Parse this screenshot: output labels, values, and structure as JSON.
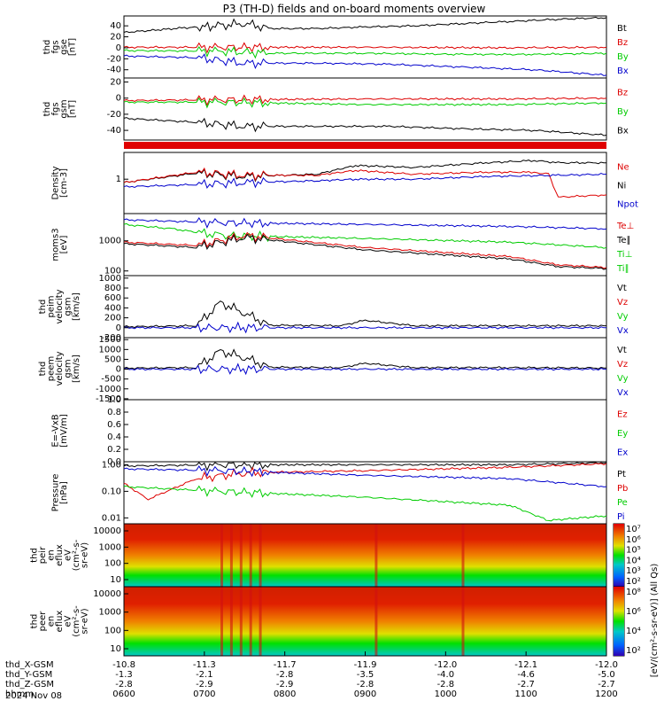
{
  "title": "P3 (TH-D) fields and on-board moments overview",
  "date_label": "2024 Nov 08",
  "chart_data": [
    {
      "type": "line",
      "ylabel": [
        "thd",
        "fgs",
        "gse",
        "[nT]"
      ],
      "yticks": [
        "40",
        "20",
        "0",
        "-20",
        "-40"
      ],
      "ytick_vals": [
        40,
        20,
        0,
        -20,
        -40
      ],
      "ylim": [
        -55,
        58
      ],
      "legend": [
        {
          "name": "Bt",
          "color": "#000000"
        },
        {
          "name": "Bz",
          "color": "#dd0000"
        },
        {
          "name": "By",
          "color": "#00cc00"
        },
        {
          "name": "Bx",
          "color": "#0000cc"
        }
      ],
      "series": [
        {
          "name": "Bt",
          "color": "#000000",
          "x": [
            0,
            0.12,
            0.2,
            0.25,
            0.3,
            0.4,
            0.5,
            0.6,
            0.7,
            0.8,
            0.9,
            1
          ],
          "values": [
            28,
            36,
            40,
            45,
            35,
            35,
            38,
            40,
            44,
            48,
            52,
            55
          ]
        },
        {
          "name": "Bz",
          "color": "#dd0000",
          "x": [
            0,
            0.2,
            0.5,
            0.8,
            1
          ],
          "values": [
            1,
            1,
            1,
            0,
            1
          ]
        },
        {
          "name": "By",
          "color": "#00cc00",
          "x": [
            0,
            0.2,
            0.3,
            0.5,
            0.7,
            0.85,
            1
          ],
          "values": [
            -5,
            -6,
            -10,
            -10,
            -12,
            -12,
            -10
          ]
        },
        {
          "name": "Bx",
          "color": "#0000cc",
          "x": [
            0,
            0.15,
            0.25,
            0.4,
            0.55,
            0.7,
            0.85,
            1
          ],
          "values": [
            -15,
            -18,
            -28,
            -28,
            -30,
            -35,
            -40,
            -50
          ]
        }
      ]
    },
    {
      "type": "line",
      "ylabel": [
        "thd",
        "fgs",
        "gsm",
        "[nT]"
      ],
      "yticks": [
        "20",
        "0",
        "-20",
        "-40"
      ],
      "ytick_vals": [
        20,
        0,
        -20,
        -40
      ],
      "ylim": [
        -52,
        25
      ],
      "legend": [
        {
          "name": "Bz",
          "color": "#dd0000"
        },
        {
          "name": "By",
          "color": "#00cc00"
        },
        {
          "name": "Bx",
          "color": "#000000"
        }
      ],
      "series": [
        {
          "name": "Bz",
          "color": "#dd0000",
          "x": [
            0,
            0.2,
            0.5,
            0.8,
            1
          ],
          "values": [
            -3,
            -2,
            -1,
            -1,
            0
          ]
        },
        {
          "name": "By",
          "color": "#00cc00",
          "x": [
            0,
            0.2,
            0.5,
            0.8,
            1
          ],
          "values": [
            -5,
            -5,
            -8,
            -8,
            -6
          ]
        },
        {
          "name": "Bx",
          "color": "#000000",
          "x": [
            0,
            0.15,
            0.25,
            0.4,
            0.55,
            0.7,
            0.85,
            1
          ],
          "values": [
            -25,
            -30,
            -35,
            -35,
            -35,
            -38,
            -40,
            -46
          ]
        }
      ]
    },
    {
      "type": "line",
      "yscale": "log",
      "ylabel": [
        "Density",
        "[cm-3]"
      ],
      "yticks": [
        "1"
      ],
      "ytick_vals": [
        1
      ],
      "ylim": [
        0.1,
        6
      ],
      "legend": [
        {
          "name": "Ne",
          "color": "#dd0000"
        },
        {
          "name": "Ni",
          "color": "#000000"
        },
        {
          "name": "Npot",
          "color": "#0000cc"
        }
      ],
      "series": [
        {
          "name": "Ni",
          "color": "#000000",
          "x": [
            0,
            0.15,
            0.25,
            0.4,
            0.48,
            0.6,
            0.75,
            0.85,
            0.9,
            1
          ],
          "values": [
            0.8,
            1.5,
            1.2,
            1.4,
            2.5,
            2.2,
            3,
            3.5,
            3,
            3
          ]
        },
        {
          "name": "Ne",
          "color": "#dd0000",
          "x": [
            0,
            0.15,
            0.25,
            0.4,
            0.48,
            0.6,
            0.75,
            0.85,
            0.88,
            0.9,
            1
          ],
          "values": [
            0.8,
            1.6,
            1.3,
            1.3,
            1.8,
            1.4,
            1.6,
            1.6,
            1.4,
            0.3,
            0.35
          ]
        },
        {
          "name": "Npot",
          "color": "#0000cc",
          "x": [
            0,
            0.15,
            0.25,
            0.4,
            0.48,
            0.6,
            0.75,
            0.9,
            1
          ],
          "values": [
            0.6,
            0.7,
            0.8,
            0.9,
            1.0,
            1.0,
            1.2,
            1.3,
            1.4
          ]
        }
      ]
    },
    {
      "type": "line",
      "yscale": "log",
      "ylabel": [
        "moms3",
        "[eV]"
      ],
      "yticks": [
        "1000",
        "100"
      ],
      "ytick_vals": [
        1000,
        100
      ],
      "ylim": [
        70,
        8000
      ],
      "legend": [
        {
          "name": "Te⊥",
          "color": "#dd0000"
        },
        {
          "name": "Te∥",
          "color": "#000000"
        },
        {
          "name": "Ti⊥",
          "color": "#00cc00"
        },
        {
          "name": "Ti∥",
          "color": "#00cc00"
        }
      ],
      "series": [
        {
          "name": "Ti⊥",
          "color": "#0000cc",
          "x": [
            0,
            0.2,
            0.5,
            0.8,
            1
          ],
          "values": [
            5000,
            4000,
            3500,
            3000,
            2500
          ]
        },
        {
          "name": "Ti∥",
          "color": "#00cc00",
          "x": [
            0,
            0.1,
            0.2,
            0.5,
            0.8,
            1
          ],
          "values": [
            3500,
            2500,
            1500,
            1200,
            900,
            600
          ]
        },
        {
          "name": "Te⊥",
          "color": "#dd0000",
          "x": [
            0,
            0.15,
            0.25,
            0.5,
            0.8,
            0.9,
            1
          ],
          "values": [
            900,
            700,
            1500,
            600,
            300,
            160,
            130
          ]
        },
        {
          "name": "Te∥",
          "color": "#000000",
          "x": [
            0,
            0.15,
            0.25,
            0.5,
            0.8,
            0.9,
            1
          ],
          "values": [
            800,
            600,
            1300,
            500,
            250,
            140,
            120
          ]
        }
      ]
    },
    {
      "type": "line",
      "ylabel": [
        "thd",
        "peim",
        "velocity",
        "gsm",
        "[km/s]"
      ],
      "yticks": [
        "1000",
        "800",
        "600",
        "400",
        "200",
        "0",
        "-200"
      ],
      "ytick_vals": [
        1000,
        800,
        600,
        400,
        200,
        0,
        -200
      ],
      "ylim": [
        -200,
        1050
      ],
      "legend": [
        {
          "name": "Vt",
          "color": "#000000"
        },
        {
          "name": "Vz",
          "color": "#dd0000"
        },
        {
          "name": "Vy",
          "color": "#00cc00"
        },
        {
          "name": "Vx",
          "color": "#0000cc"
        }
      ],
      "series": [
        {
          "name": "Vt",
          "color": "#000000",
          "x": [
            0,
            0.15,
            0.2,
            0.25,
            0.3,
            0.45,
            0.5,
            0.6,
            0.8,
            1
          ],
          "values": [
            20,
            40,
            500,
            300,
            50,
            40,
            150,
            40,
            40,
            40
          ]
        },
        {
          "name": "Vx",
          "color": "#0000cc",
          "x": [
            0,
            0.5,
            1
          ],
          "values": [
            0,
            0,
            0
          ]
        }
      ]
    },
    {
      "type": "line",
      "ylabel": [
        "thd",
        "peem",
        "velocity",
        "gsm",
        "[km/s]"
      ],
      "yticks": [
        "1500",
        "1000",
        "500",
        "0",
        "-500",
        "-1000",
        "-1500"
      ],
      "ytick_vals": [
        1500,
        1000,
        500,
        0,
        -500,
        -1000,
        -1500
      ],
      "ylim": [
        -1550,
        1600
      ],
      "legend": [
        {
          "name": "Vt",
          "color": "#000000"
        },
        {
          "name": "Vz",
          "color": "#dd0000"
        },
        {
          "name": "Vy",
          "color": "#00cc00"
        },
        {
          "name": "Vx",
          "color": "#0000cc"
        }
      ],
      "series": [
        {
          "name": "Vt",
          "color": "#000000",
          "x": [
            0,
            0.15,
            0.2,
            0.25,
            0.3,
            0.45,
            0.5,
            0.6,
            0.8,
            1
          ],
          "values": [
            50,
            80,
            900,
            600,
            100,
            80,
            300,
            80,
            80,
            60
          ]
        },
        {
          "name": "Vx",
          "color": "#0000cc",
          "x": [
            0,
            0.5,
            1
          ],
          "values": [
            0,
            0,
            0
          ]
        }
      ]
    },
    {
      "type": "line",
      "ylabel": [
        "E=-VxB",
        "[mV/m]"
      ],
      "yticks": [
        "1.0",
        "0.8",
        "0.6",
        "0.4",
        "0.2",
        "0.0"
      ],
      "ytick_vals": [
        1.0,
        0.8,
        0.6,
        0.4,
        0.2,
        0.0
      ],
      "ylim": [
        0,
        1.0
      ],
      "legend": [
        {
          "name": "Ez",
          "color": "#dd0000"
        },
        {
          "name": "Ey",
          "color": "#00cc00"
        },
        {
          "name": "Ex",
          "color": "#0000cc"
        }
      ],
      "series": []
    },
    {
      "type": "line",
      "yscale": "log",
      "ylabel": [
        "Pressure",
        "[nPa]"
      ],
      "yticks": [
        "1.00",
        "0.10",
        "0.01"
      ],
      "ytick_vals": [
        1,
        0.1,
        0.01
      ],
      "ylim": [
        0.006,
        1.3
      ],
      "legend": [
        {
          "name": "Pt",
          "color": "#000000"
        },
        {
          "name": "Pb",
          "color": "#dd0000"
        },
        {
          "name": "Pe",
          "color": "#00cc00"
        },
        {
          "name": "Pi",
          "color": "#0000cc"
        }
      ],
      "series": [
        {
          "name": "Pt",
          "color": "#000000",
          "x": [
            0,
            0.2,
            0.5,
            0.8,
            1
          ],
          "values": [
            0.9,
            1.0,
            1.0,
            1.0,
            1.2
          ]
        },
        {
          "name": "Pb",
          "color": "#dd0000",
          "x": [
            0,
            0.05,
            0.15,
            0.25,
            0.5,
            0.8,
            1
          ],
          "values": [
            0.2,
            0.05,
            0.3,
            0.5,
            0.6,
            0.8,
            1.1
          ]
        },
        {
          "name": "Pi",
          "color": "#0000cc",
          "x": [
            0,
            0.2,
            0.5,
            0.8,
            1
          ],
          "values": [
            0.7,
            0.6,
            0.4,
            0.3,
            0.15
          ]
        },
        {
          "name": "Pe",
          "color": "#00cc00",
          "x": [
            0,
            0.2,
            0.5,
            0.8,
            0.88,
            1
          ],
          "values": [
            0.15,
            0.1,
            0.06,
            0.03,
            0.008,
            0.012
          ]
        }
      ]
    },
    {
      "type": "heatmap",
      "ylabel": [
        "thd",
        "peir",
        "en",
        "eflux",
        "eV",
        "(cm^2-s-",
        "sr-eV)"
      ],
      "yticks": [
        "10000",
        "1000",
        "100",
        "10"
      ],
      "colorbar_ticks": [
        "10^7",
        "10^6",
        "10^5",
        "10^4",
        "10^3",
        "10^2"
      ]
    },
    {
      "type": "heatmap",
      "ylabel": [
        "thd",
        "peer",
        "en",
        "eflux",
        "eV",
        "(cm^2-s-",
        "sr-eV)"
      ],
      "yticks": [
        "10000",
        "1000",
        "100",
        "10"
      ],
      "colorbar_ticks": [
        "10^8",
        "10^6",
        "10^4",
        "10^2"
      ]
    }
  ],
  "colorbar_label": "[eV/(cm^2-s-sr-eV)] (All Qs)",
  "xaxis": {
    "rows": [
      {
        "label": "thd_X-GSM",
        "values": [
          "-10.8",
          "-11.3",
          "-11.7",
          "-11.9",
          "-12.0",
          "-12.1",
          "-12.0"
        ]
      },
      {
        "label": "thd_Y-GSM",
        "values": [
          "-1.3",
          "-2.1",
          "-2.8",
          "-3.5",
          "-4.0",
          "-4.6",
          "-5.0"
        ]
      },
      {
        "label": "thd_Z-GSM",
        "values": [
          "-2.8",
          "-2.9",
          "-2.9",
          "-2.8",
          "-2.8",
          "-2.7",
          "-2.7"
        ]
      },
      {
        "label": "hhmm",
        "values": [
          "0600",
          "0700",
          "0800",
          "0900",
          "1000",
          "1100",
          "1200"
        ]
      }
    ]
  }
}
